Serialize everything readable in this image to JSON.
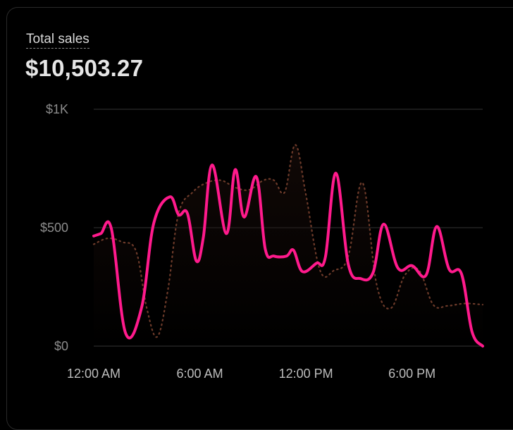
{
  "metric": {
    "label": "Total sales",
    "value": "$10,503.27"
  },
  "colors": {
    "primary_line": "#ff1a8c",
    "comparison_line": "#6e3b2a",
    "grid": "#222222",
    "tick_text": "#8c8c8c",
    "x_tick_text": "#bdbdbd"
  },
  "chart_data": {
    "type": "line",
    "title": "Total sales",
    "xlabel": "",
    "ylabel": "",
    "ylim": [
      0,
      1000
    ],
    "grid": true,
    "y_ticks": [
      {
        "value": 0,
        "label": "$0"
      },
      {
        "value": 500,
        "label": "$500"
      },
      {
        "value": 1000,
        "label": "$1K"
      }
    ],
    "x_ticks": [
      {
        "hour": 0,
        "label": "12:00 AM"
      },
      {
        "hour": 6,
        "label": "6:00 AM"
      },
      {
        "hour": 12,
        "label": "12:00 PM"
      },
      {
        "hour": 18,
        "label": "6:00 PM"
      }
    ],
    "xlim": [
      0,
      22
    ],
    "series": [
      {
        "style": "solid",
        "color": "#ff1a8c",
        "x": [
          0,
          0.4,
          1.0,
          1.8,
          2.7,
          3.4,
          4.3,
          4.8,
          5.3,
          5.8,
          6.2,
          6.7,
          7.5,
          8.0,
          8.5,
          9.2,
          9.7,
          10.2,
          10.9,
          11.3,
          11.8,
          12.6,
          13.1,
          13.7,
          14.4,
          15.1,
          15.8,
          16.4,
          17.2,
          18.0,
          18.8,
          19.4,
          20.1,
          20.8,
          21.4,
          22.0
        ],
        "values": [
          465,
          475,
          495,
          55,
          160,
          520,
          630,
          555,
          560,
          360,
          460,
          765,
          475,
          745,
          545,
          715,
          410,
          380,
          380,
          405,
          315,
          350,
          375,
          730,
          345,
          285,
          310,
          515,
          330,
          340,
          300,
          505,
          325,
          305,
          60,
          0
        ]
      },
      {
        "style": "dotted",
        "color": "#6e3b2a",
        "x": [
          0,
          0.8,
          1.6,
          2.4,
          3.0,
          3.6,
          4.2,
          4.8,
          5.6,
          6.4,
          7.2,
          8.0,
          8.8,
          9.6,
          10.2,
          10.8,
          11.4,
          12.0,
          12.8,
          13.6,
          14.4,
          15.2,
          16.0,
          16.8,
          17.6,
          18.4,
          19.2,
          20.0,
          21.0,
          22.0
        ],
        "values": [
          430,
          455,
          440,
          400,
          160,
          40,
          240,
          560,
          650,
          690,
          700,
          670,
          660,
          700,
          700,
          650,
          850,
          640,
          320,
          320,
          380,
          690,
          260,
          160,
          300,
          320,
          175,
          170,
          180,
          175
        ]
      }
    ]
  }
}
